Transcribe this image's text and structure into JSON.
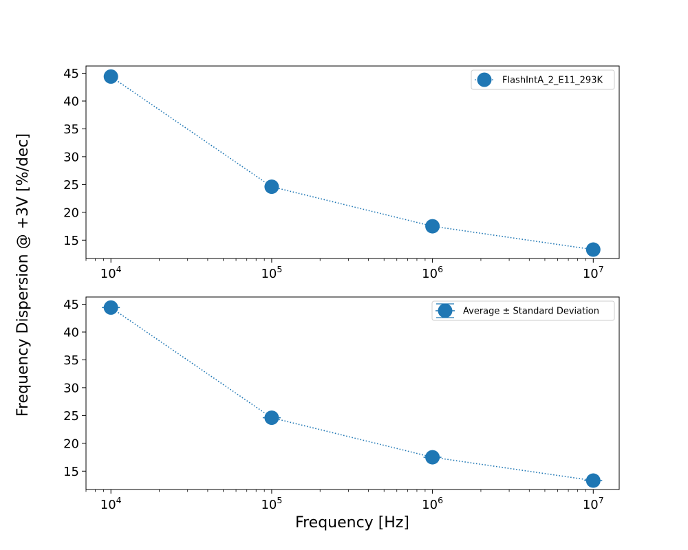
{
  "figure": {
    "shared_ylabel": "Frequency Dispersion @ +3V [%/dec]",
    "shared_xlabel": "Frequency [Hz]"
  },
  "colors": {
    "series": "#1f77b4",
    "axes": "#000000",
    "legend_border": "#cccccc"
  },
  "chart_data": [
    {
      "type": "line",
      "marker": "circle",
      "line_style": "dotted",
      "x_scale": "log",
      "x": [
        10000,
        100000,
        1000000,
        10000000
      ],
      "xticks": [
        {
          "base": "10",
          "exp": "4"
        },
        {
          "base": "10",
          "exp": "5"
        },
        {
          "base": "10",
          "exp": "6"
        },
        {
          "base": "10",
          "exp": "7"
        }
      ],
      "xlim": [
        7000,
        14500000
      ],
      "ylim": [
        11.7,
        46.3
      ],
      "yticks": [
        "15",
        "20",
        "25",
        "30",
        "35",
        "40",
        "45"
      ],
      "series": [
        {
          "name": "FlashIntA_2_E11_293K",
          "values": [
            44.4,
            24.6,
            17.5,
            13.3
          ]
        }
      ],
      "legend": {
        "placement": "upper right",
        "label": "FlashIntA_2_E11_293K"
      },
      "error_bars": false,
      "grid": false
    },
    {
      "type": "line",
      "marker": "circle",
      "line_style": "dotted",
      "x_scale": "log",
      "x": [
        10000,
        100000,
        1000000,
        10000000
      ],
      "xticks": [
        {
          "base": "10",
          "exp": "4"
        },
        {
          "base": "10",
          "exp": "5"
        },
        {
          "base": "10",
          "exp": "6"
        },
        {
          "base": "10",
          "exp": "7"
        }
      ],
      "xlim": [
        7000,
        14500000
      ],
      "ylim": [
        11.7,
        46.3
      ],
      "yticks": [
        "15",
        "20",
        "25",
        "30",
        "35",
        "40",
        "45"
      ],
      "series": [
        {
          "name": "Average ± Standard Deviation",
          "values": [
            44.4,
            24.6,
            17.5,
            13.3
          ],
          "errors": [
            0,
            0,
            0,
            0
          ]
        }
      ],
      "legend": {
        "placement": "upper right",
        "label": "Average ± Standard Deviation"
      },
      "error_bars": true,
      "grid": false
    }
  ]
}
